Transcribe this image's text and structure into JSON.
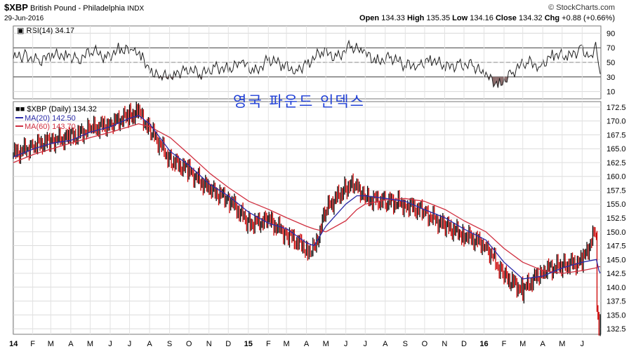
{
  "header": {
    "symbol": "$XBP",
    "name": "British Pound - Philadelphia",
    "exchange": "INDX",
    "date": "29-Jun-2016",
    "brand": "© StockCharts.com",
    "open_label": "Open",
    "open": "134.33",
    "high_label": "High",
    "high": "135.35",
    "low_label": "Low",
    "low": "134.16",
    "close_label": "Close",
    "close": "134.32",
    "chg_label": "Chg",
    "chg": "+0.88 (+0.66%)"
  },
  "annotation": "영국 파운드 인덱스",
  "colors": {
    "ma20": "#2a2aa8",
    "ma60": "#d03040",
    "up": "#000000",
    "down": "#cc0000",
    "rsi_fill": "#8b6b6b",
    "annotation": "#1f3fd6"
  },
  "chart_data": [
    {
      "type": "line",
      "title": "RSI(14) 34.17",
      "legend_label": "RSI(14) 34.17",
      "ylim": [
        0,
        100
      ],
      "yticks": [
        "90",
        "70",
        "50",
        "30",
        "10"
      ],
      "overbought": 70,
      "oversold": 30,
      "series": [
        {
          "name": "RSI(14)",
          "x": [
            "2014-01-02",
            "2014-01-20",
            "2014-02-10",
            "2014-03-03",
            "2014-03-24",
            "2014-04-14",
            "2014-05-05",
            "2014-05-26",
            "2014-06-16",
            "2014-07-07",
            "2014-07-21",
            "2014-08-04",
            "2014-08-18",
            "2014-09-08",
            "2014-09-29",
            "2014-10-20",
            "2014-11-10",
            "2014-12-01",
            "2014-12-22",
            "2015-01-12",
            "2015-02-02",
            "2015-02-23",
            "2015-03-16",
            "2015-04-06",
            "2015-04-27",
            "2015-05-18",
            "2015-06-08",
            "2015-06-29",
            "2015-07-20",
            "2015-08-10",
            "2015-08-31",
            "2015-09-21",
            "2015-10-12",
            "2015-11-02",
            "2015-11-23",
            "2015-12-14",
            "2016-01-04",
            "2016-01-25",
            "2016-02-15",
            "2016-03-07",
            "2016-03-28",
            "2016-04-18",
            "2016-05-09",
            "2016-05-30",
            "2016-06-13",
            "2016-06-22",
            "2016-06-29"
          ],
          "values": [
            55,
            60,
            52,
            58,
            62,
            55,
            65,
            58,
            68,
            64,
            55,
            40,
            28,
            35,
            42,
            32,
            45,
            40,
            48,
            38,
            55,
            45,
            40,
            52,
            64,
            58,
            72,
            62,
            52,
            58,
            45,
            48,
            55,
            42,
            48,
            46,
            30,
            20,
            38,
            50,
            46,
            62,
            55,
            70,
            58,
            71,
            34
          ]
        }
      ]
    },
    {
      "type": "line",
      "title": "$XBP (Daily) 134.32",
      "legend_label": "$XBP (Daily) 134.32",
      "ylim": [
        131.5,
        173.5
      ],
      "yticks": [
        "172.5",
        "170.0",
        "167.5",
        "165.0",
        "162.5",
        "160.0",
        "157.5",
        "155.0",
        "152.5",
        "150.0",
        "147.5",
        "145.0",
        "142.5",
        "140.0",
        "137.5",
        "135.0",
        "132.5"
      ],
      "xticks": [
        "14",
        "F",
        "M",
        "A",
        "M",
        "J",
        "J",
        "A",
        "S",
        "O",
        "N",
        "D",
        "15",
        "F",
        "M",
        "A",
        "M",
        "J",
        "J",
        "A",
        "S",
        "O",
        "N",
        "D",
        "16",
        "F",
        "M",
        "A",
        "M",
        "J"
      ],
      "x": [
        "2014-01-02",
        "2014-02-03",
        "2014-03-03",
        "2014-04-01",
        "2014-05-01",
        "2014-06-02",
        "2014-07-01",
        "2014-07-15",
        "2014-08-01",
        "2014-09-02",
        "2014-10-01",
        "2014-11-03",
        "2014-12-01",
        "2015-01-02",
        "2015-02-02",
        "2015-03-02",
        "2015-04-01",
        "2015-04-13",
        "2015-05-01",
        "2015-06-01",
        "2015-06-18",
        "2015-07-01",
        "2015-08-03",
        "2015-09-01",
        "2015-10-01",
        "2015-11-02",
        "2015-12-01",
        "2016-01-04",
        "2016-02-01",
        "2016-03-01",
        "2016-04-01",
        "2016-05-02",
        "2016-06-01",
        "2016-06-23",
        "2016-06-24",
        "2016-06-27",
        "2016-06-29"
      ],
      "series": [
        {
          "name": "$XBP (Daily)",
          "values": [
            164.0,
            165.5,
            166.5,
            167.0,
            168.5,
            169.5,
            171.0,
            171.5,
            168.5,
            163.0,
            161.0,
            157.5,
            156.0,
            151.5,
            152.0,
            149.5,
            147.0,
            146.5,
            154.0,
            158.0,
            158.5,
            156.0,
            155.5,
            155.0,
            153.5,
            151.0,
            149.5,
            147.5,
            142.0,
            139.5,
            143.0,
            144.0,
            144.5,
            150.5,
            136.0,
            132.0,
            134.3
          ]
        },
        {
          "name": "MA(20) 142.50",
          "values": [
            163.5,
            165.0,
            166.0,
            166.5,
            168.0,
            169.0,
            170.5,
            171.0,
            169.5,
            164.5,
            162.0,
            158.5,
            156.5,
            153.5,
            151.5,
            150.5,
            148.0,
            147.5,
            151.0,
            155.0,
            156.5,
            156.5,
            156.0,
            155.5,
            154.0,
            152.5,
            150.5,
            148.5,
            144.5,
            141.5,
            142.0,
            143.5,
            144.5,
            145.0,
            144.5,
            143.0,
            142.5
          ]
        },
        {
          "name": "MA(60) 143.70",
          "values": [
            162.5,
            164.0,
            165.0,
            166.0,
            167.0,
            168.0,
            169.0,
            169.5,
            169.0,
            167.0,
            164.0,
            160.5,
            158.0,
            155.5,
            154.0,
            152.5,
            151.0,
            150.5,
            150.0,
            152.0,
            154.0,
            155.0,
            155.8,
            156.0,
            155.5,
            154.0,
            152.0,
            150.0,
            147.0,
            144.5,
            143.0,
            142.5,
            143.0,
            143.5,
            143.6,
            143.7,
            143.7
          ]
        }
      ]
    }
  ]
}
